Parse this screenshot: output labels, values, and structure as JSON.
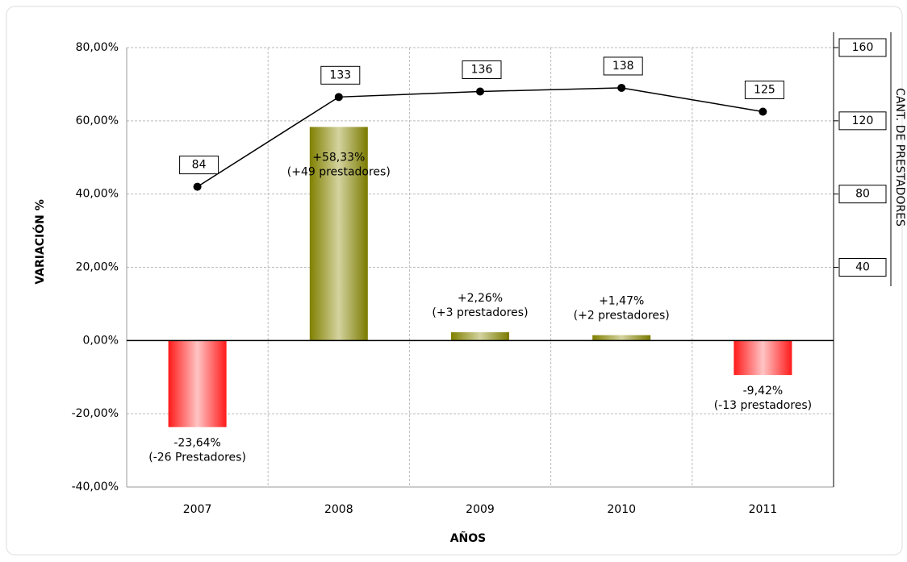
{
  "chart_data": {
    "type": "bar_line",
    "categories": [
      "2007",
      "2008",
      "2009",
      "2010",
      "2011"
    ],
    "series": [
      {
        "type": "bar",
        "values": [
          -23.64,
          58.33,
          2.26,
          1.47,
          -9.42
        ],
        "value_labels": [
          "-23,64%",
          "+58,33%",
          "+2,26%",
          "+1,47%",
          "-9,42%"
        ],
        "notes": [
          "(-26 Prestadores)",
          "(+49 prestadores)",
          "(+3 prestadores)",
          "(+2 prestadores)",
          "(-13 prestadores)"
        ],
        "color": "#808000",
        "negative_color": "#ff2020"
      },
      {
        "type": "line",
        "axis": "y2",
        "values": [
          84,
          133,
          136,
          138,
          125
        ],
        "color": "#000000"
      }
    ],
    "ylabel": "VARIACIÓN %",
    "xlabel": "AÑOS",
    "y2label": "CANT. DE PRESTADORES",
    "ylim": [
      -40,
      80
    ],
    "yticks": [
      {
        "value": -40,
        "label": "-40,00%"
      },
      {
        "value": -20,
        "label": "-20,00%"
      },
      {
        "value": 0,
        "label": "0,00%"
      },
      {
        "value": 20,
        "label": "20,00%"
      },
      {
        "value": 40,
        "label": "40,00%"
      },
      {
        "value": 60,
        "label": "60,00%"
      },
      {
        "value": 80,
        "label": "80,00%"
      }
    ],
    "y2lim": [
      -80,
      160
    ],
    "y2ticks": [
      40,
      80,
      120,
      160
    ],
    "grid": true
  }
}
